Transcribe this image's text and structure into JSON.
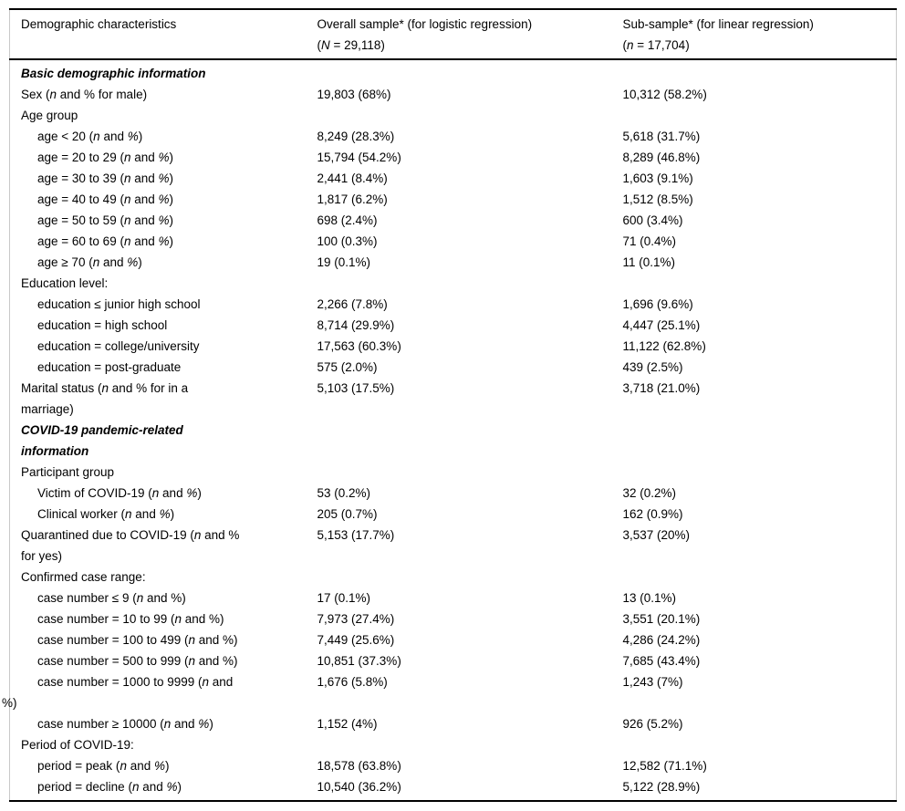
{
  "table": {
    "header": {
      "col1": "Demographic characteristics",
      "col2": "Overall sample* (for logistic regression)\n(_N_ = 29,118)",
      "col3": "Sub-sample* (for linear regression)\n(_n_ = 17,704)"
    },
    "rows": [
      {
        "type": "section",
        "label": "Basic demographic information",
        "col2": "",
        "col3": ""
      },
      {
        "type": "row",
        "label": "Sex (_n_ and % for male)",
        "col2": "19,803 (68%)",
        "col3": "10,312 (58.2%)"
      },
      {
        "type": "row",
        "label": "Age group",
        "col2": "",
        "col3": ""
      },
      {
        "type": "subrow",
        "label": "age < 20 (_n_ and _%_)",
        "col2": "8,249 (28.3%)",
        "col3": "5,618 (31.7%)"
      },
      {
        "type": "subrow",
        "label": "age = 20 to 29 (_n_ and _%_)",
        "col2": "15,794 (54.2%)",
        "col3": "8,289 (46.8%)"
      },
      {
        "type": "subrow",
        "label": "age = 30 to 39 (_n_ and _%_)",
        "col2": "2,441 (8.4%)",
        "col3": "1,603 (9.1%)"
      },
      {
        "type": "subrow",
        "label": "age = 40 to 49 (_n_ and _%_)",
        "col2": "1,817 (6.2%)",
        "col3": "1,512 (8.5%)"
      },
      {
        "type": "subrow",
        "label": "age = 50 to 59 (_n_ and _%_)",
        "col2": "698 (2.4%)",
        "col3": "600 (3.4%)"
      },
      {
        "type": "subrow",
        "label": "age = 60 to 69 (_n_ and _%_)",
        "col2": "100 (0.3%)",
        "col3": "71 (0.4%)"
      },
      {
        "type": "subrow",
        "label": "age ≥ 70 (_n_ and _%_)",
        "col2": "19 (0.1%)",
        "col3": "11 (0.1%)"
      },
      {
        "type": "row",
        "label": "Education level:",
        "col2": "",
        "col3": ""
      },
      {
        "type": "subrow",
        "label": "education ≤ junior high school",
        "col2": "2,266 (7.8%)",
        "col3": "1,696 (9.6%)"
      },
      {
        "type": "subrow",
        "label": "education = high school",
        "col2": "8,714 (29.9%)",
        "col3": "4,447 (25.1%)"
      },
      {
        "type": "subrow",
        "label": "education = college/university",
        "col2": "17,563 (60.3%)",
        "col3": "11,122 (62.8%)"
      },
      {
        "type": "subrow",
        "label": "education = post-graduate",
        "col2": "575 (2.0%)",
        "col3": "439 (2.5%)"
      },
      {
        "type": "row",
        "label": "Marital status (_n_ and % for in a\nmarriage)",
        "col2": "5,103 (17.5%)",
        "col3": "3,718 (21.0%)"
      },
      {
        "type": "section",
        "label": "COVID-19 pandemic-related\ninformation",
        "col2": "",
        "col3": ""
      },
      {
        "type": "row",
        "label": "Participant group",
        "col2": "",
        "col3": ""
      },
      {
        "type": "subrow",
        "label": "Victim of COVID-19 (_n_ and _%_)",
        "col2": "53 (0.2%)",
        "col3": "32 (0.2%)"
      },
      {
        "type": "subrow",
        "label": "Clinical worker (_n_ and _%_)",
        "col2": "205 (0.7%)",
        "col3": "162 (0.9%)"
      },
      {
        "type": "row",
        "label": "Quarantined due to COVID-19 (_n_ and %\nfor yes)",
        "col2": "5,153 (17.7%)",
        "col3": "3,537 (20%)"
      },
      {
        "type": "row",
        "label": "Confirmed case range:",
        "col2": "",
        "col3": ""
      },
      {
        "type": "subrow",
        "label": "case number ≤ 9 (_n_ and %)",
        "col2": "17 (0.1%)",
        "col3": "13 (0.1%)"
      },
      {
        "type": "subrow",
        "label": "case number = 10 to 99 (_n_ and %)",
        "col2": "7,973 (27.4%)",
        "col3": "3,551 (20.1%)"
      },
      {
        "type": "subrow",
        "label": "case number = 100 to 499 (_n_ and %)",
        "col2": "7,449 (25.6%)",
        "col3": "4,286 (24.2%)"
      },
      {
        "type": "subrow",
        "label": "case number = 500 to 999 (_n_ and %)",
        "col2": "10,851 (37.3%)",
        "col3": "7,685 (43.4%)"
      },
      {
        "type": "subrow-hang",
        "label": "case number = 1000 to 9999 (_n_ and\n%)",
        "col2": "1,676 (5.8%)",
        "col3": "1,243 (7%)"
      },
      {
        "type": "subrow",
        "label": "case number ≥ 10000 (_n_ and _%_)",
        "col2": "1,152 (4%)",
        "col3": "926 (5.2%)"
      },
      {
        "type": "row",
        "label": "Period of COVID-19:",
        "col2": "",
        "col3": ""
      },
      {
        "type": "subrow",
        "label": "period = peak (_n_ and _%_)",
        "col2": "18,578 (63.8%)",
        "col3": "12,582 (71.1%)"
      },
      {
        "type": "subrow",
        "label": "period = decline (_n_ and _%_)",
        "col2": "10,540 (36.2%)",
        "col3": "5,122 (28.9%)"
      }
    ]
  }
}
